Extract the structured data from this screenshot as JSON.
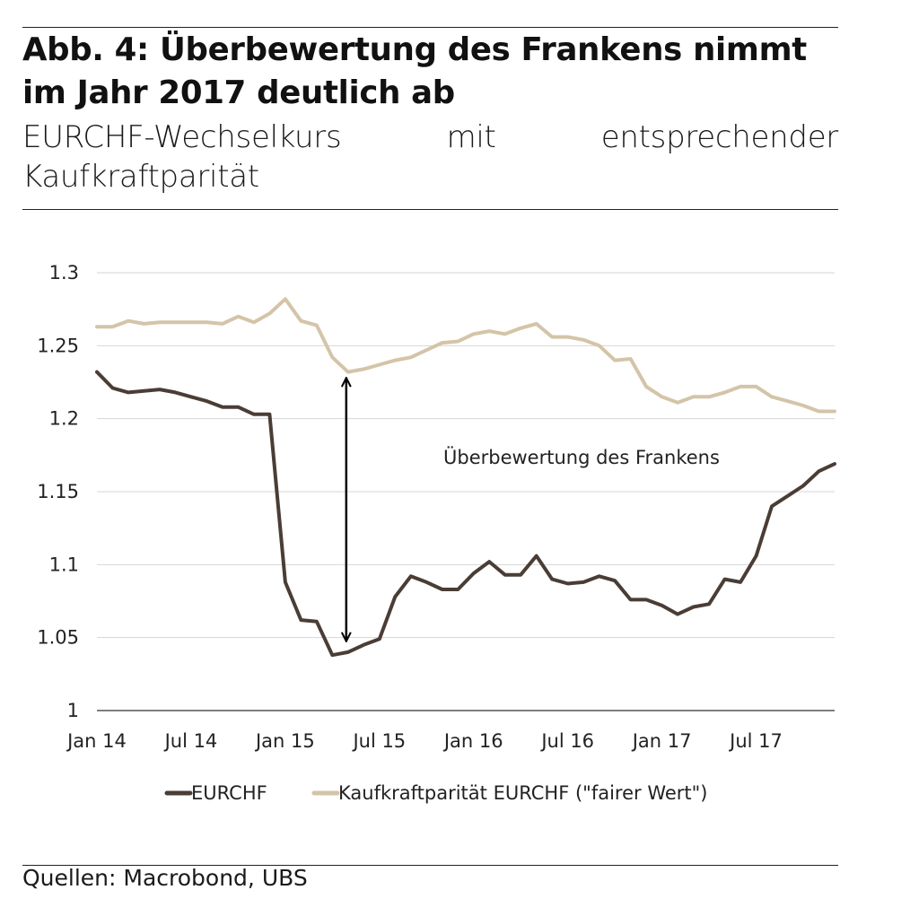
{
  "header": {
    "title": "Abb. 4: Überbewertung des Frankens nimmt im Jahr 2017 deutlich ab",
    "subtitle": "EURCHF-Wechselkurs mit entsprechender Kaufkraftparität"
  },
  "footer": {
    "source": "Quellen: Macrobond, UBS"
  },
  "colors": {
    "eurchf": "#4a3d36",
    "ppp": "#d4c4a8",
    "grid": "#d6d6d6",
    "axis": "#333333",
    "arrow": "#000000"
  },
  "chart_data": {
    "type": "line",
    "title": "Abb. 4: Überbewertung des Frankens nimmt im Jahr 2017 deutlich ab",
    "subtitle": "EURCHF-Wechselkurs mit entsprechender Kaufkraftparität",
    "xlabel": "",
    "ylabel": "",
    "ylim": [
      1.0,
      1.3
    ],
    "y_ticks": [
      1.0,
      1.05,
      1.1,
      1.15,
      1.2,
      1.25,
      1.3
    ],
    "y_tick_labels": [
      "1",
      "1.05",
      "1.1",
      "1.15",
      "1.2",
      "1.25",
      "1.3"
    ],
    "x_ticks": [
      {
        "label": "Jan 14",
        "month_index": 0
      },
      {
        "label": "Jul 14",
        "month_index": 6
      },
      {
        "label": "Jan 15",
        "month_index": 12
      },
      {
        "label": "Jul 15",
        "month_index": 18
      },
      {
        "label": "Jan 16",
        "month_index": 24
      },
      {
        "label": "Jul 16",
        "month_index": 30
      },
      {
        "label": "Jan 17",
        "month_index": 36
      },
      {
        "label": "Jul 17",
        "month_index": 42
      }
    ],
    "x_range": [
      0,
      47
    ],
    "grid": true,
    "legend_position": "bottom",
    "series": [
      {
        "name": "EURCHF",
        "key": "eurchf",
        "months": [
          0,
          1,
          2,
          3,
          4,
          5,
          6,
          7,
          8,
          9,
          10,
          11,
          12,
          13,
          14,
          15,
          16,
          17,
          18,
          19,
          20,
          21,
          22,
          23,
          24,
          25,
          26,
          27,
          28,
          29,
          30,
          31,
          32,
          33,
          34,
          35,
          36,
          37,
          38,
          39,
          40,
          41,
          42,
          43,
          44,
          45,
          46,
          47
        ],
        "values": [
          1.232,
          1.221,
          1.218,
          1.219,
          1.22,
          1.218,
          1.215,
          1.212,
          1.208,
          1.208,
          1.203,
          1.203,
          1.088,
          1.062,
          1.061,
          1.038,
          1.04,
          1.045,
          1.049,
          1.078,
          1.092,
          1.088,
          1.083,
          1.083,
          1.094,
          1.102,
          1.093,
          1.093,
          1.106,
          1.09,
          1.087,
          1.088,
          1.092,
          1.089,
          1.076,
          1.076,
          1.072,
          1.066,
          1.071,
          1.073,
          1.09,
          1.088,
          1.106,
          1.14,
          1.147,
          1.154,
          1.164,
          1.169
        ]
      },
      {
        "name": "Kaufkraftparität EURCHF (\"fairer Wert\")",
        "key": "ppp",
        "months": [
          0,
          1,
          2,
          3,
          4,
          5,
          6,
          7,
          8,
          9,
          10,
          11,
          12,
          13,
          14,
          15,
          16,
          17,
          18,
          19,
          20,
          21,
          22,
          23,
          24,
          25,
          26,
          27,
          28,
          29,
          30,
          31,
          32,
          33,
          34,
          35,
          36,
          37,
          38,
          39,
          40,
          41,
          42,
          43,
          44,
          45,
          46,
          47
        ],
        "values": [
          1.263,
          1.263,
          1.267,
          1.265,
          1.266,
          1.266,
          1.266,
          1.266,
          1.265,
          1.27,
          1.266,
          1.272,
          1.282,
          1.267,
          1.264,
          1.242,
          1.232,
          1.234,
          1.237,
          1.24,
          1.242,
          1.247,
          1.252,
          1.253,
          1.258,
          1.26,
          1.258,
          1.262,
          1.265,
          1.256,
          1.256,
          1.254,
          1.25,
          1.24,
          1.241,
          1.222,
          1.215,
          1.211,
          1.215,
          1.215,
          1.218,
          1.222,
          1.222,
          1.215,
          1.212,
          1.209,
          1.205,
          1.205
        ]
      }
    ],
    "annotations": [
      {
        "text": "Überbewertung des Frankens",
        "arrow": {
          "month_index": 16,
          "from_value": 1.045,
          "to_value": 1.228
        }
      }
    ],
    "legend": [
      {
        "label": "EURCHF",
        "key": "eurchf"
      },
      {
        "label": "Kaufkraftparität EURCHF (\"fairer Wert\")",
        "key": "ppp"
      }
    ]
  }
}
